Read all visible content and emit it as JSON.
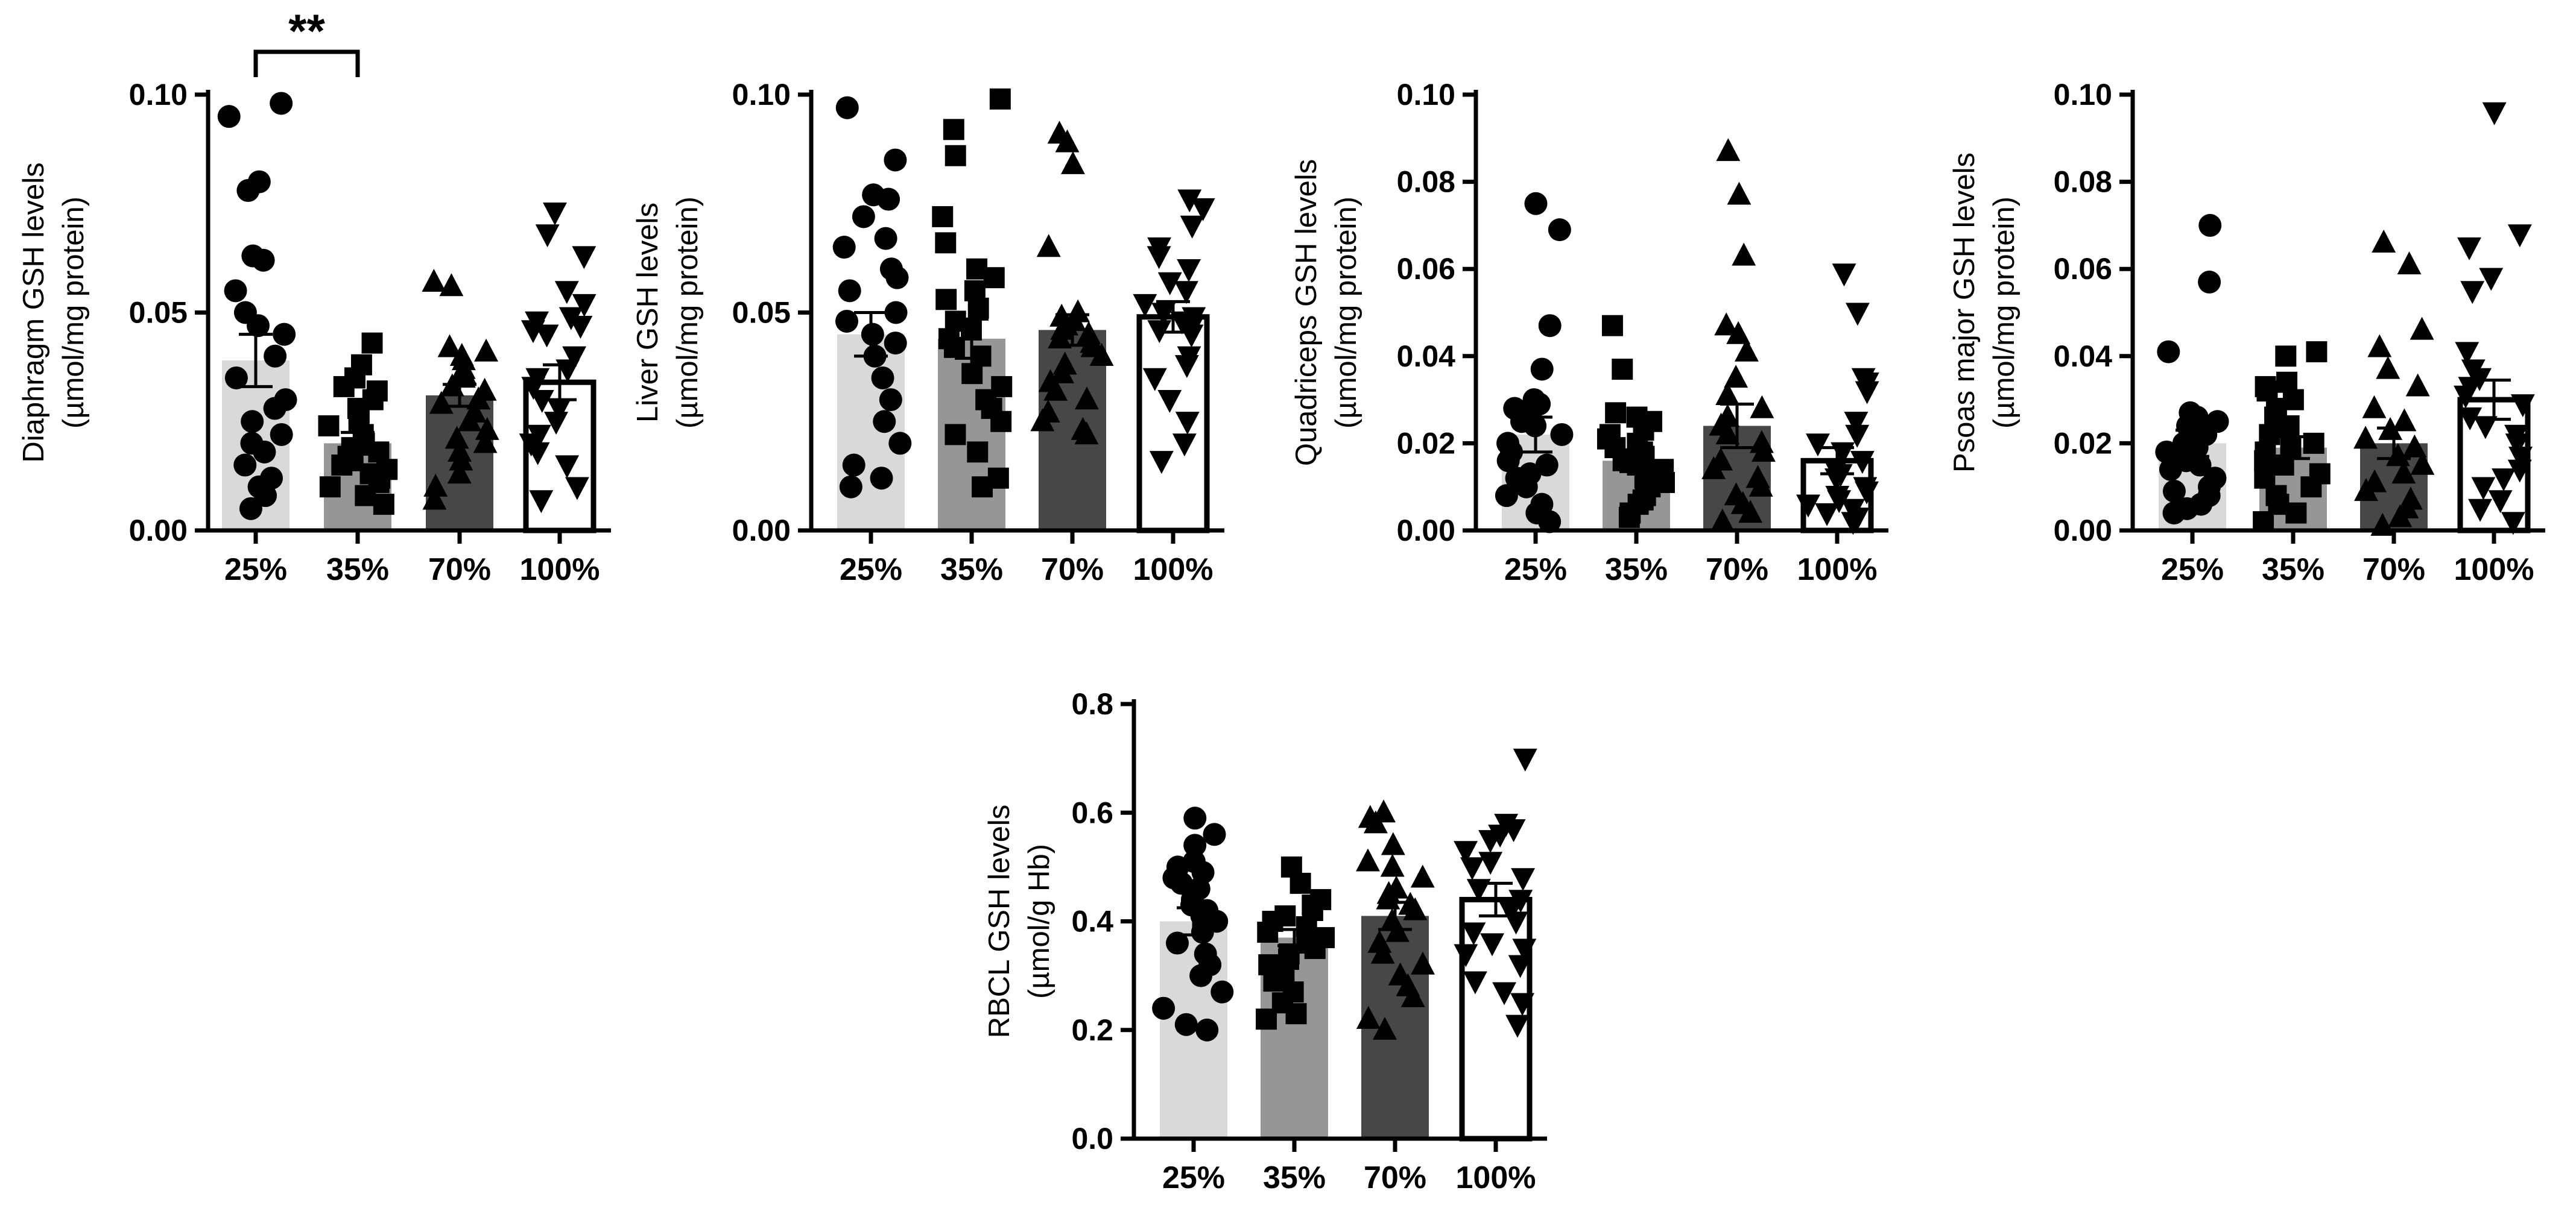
{
  "chart_data": [
    {
      "id": "diaphragm",
      "type": "bar",
      "ylabel": "Diaphragm GSH levels",
      "ylabel_unit": "(µmol/mg protein)",
      "categories": [
        "25%",
        "35%",
        "70%",
        "100%"
      ],
      "ylim": [
        0,
        0.1
      ],
      "yticks": [
        0.0,
        0.05,
        0.1
      ],
      "ytick_labels": [
        "0.00",
        "0.05",
        "0.10"
      ],
      "bar_colors": [
        "#d9d9d9",
        "#969696",
        "#474747",
        "#ffffff"
      ],
      "markers": [
        "circle",
        "square",
        "triangle-up",
        "triangle-down"
      ],
      "means": [
        0.039,
        0.02,
        0.031,
        0.034
      ],
      "sem": [
        0.006,
        0.0025,
        0.0025,
        0.004
      ],
      "points": [
        [
          0.098,
          0.095,
          0.08,
          0.078,
          0.063,
          0.062,
          0.055,
          0.05,
          0.047,
          0.045,
          0.04,
          0.035,
          0.03,
          0.028,
          0.025,
          0.022,
          0.02,
          0.018,
          0.015,
          0.012,
          0.01,
          0.008,
          0.005
        ],
        [
          0.043,
          0.038,
          0.035,
          0.033,
          0.032,
          0.03,
          0.028,
          0.027,
          0.025,
          0.024,
          0.022,
          0.02,
          0.019,
          0.018,
          0.017,
          0.016,
          0.015,
          0.014,
          0.013,
          0.012,
          0.011,
          0.01,
          0.008,
          0.006
        ],
        [
          0.057,
          0.056,
          0.042,
          0.041,
          0.04,
          0.039,
          0.037,
          0.036,
          0.035,
          0.033,
          0.032,
          0.03,
          0.029,
          0.027,
          0.025,
          0.023,
          0.021,
          0.02,
          0.018,
          0.016,
          0.013,
          0.01,
          0.007
        ],
        [
          0.073,
          0.068,
          0.063,
          0.055,
          0.052,
          0.049,
          0.048,
          0.047,
          0.046,
          0.045,
          0.04,
          0.037,
          0.035,
          0.033,
          0.03,
          0.028,
          0.025,
          0.022,
          0.02,
          0.018,
          0.015,
          0.01,
          0.007
        ]
      ],
      "significance": {
        "from": "25%",
        "to": "35%",
        "label": "**"
      }
    },
    {
      "id": "liver",
      "type": "bar",
      "ylabel": "Liver GSH levels",
      "ylabel_unit": "(µmol/mg protein)",
      "categories": [
        "25%",
        "35%",
        "70%",
        "100%"
      ],
      "ylim": [
        0,
        0.1
      ],
      "yticks": [
        0.0,
        0.05,
        0.1
      ],
      "ytick_labels": [
        "0.00",
        "0.05",
        "0.10"
      ],
      "bar_colors": [
        "#d9d9d9",
        "#969696",
        "#474747",
        "#ffffff"
      ],
      "markers": [
        "circle",
        "square",
        "triangle-up",
        "triangle-down"
      ],
      "means": [
        0.045,
        0.044,
        0.046,
        0.049
      ],
      "sem": [
        0.005,
        0.0045,
        0.0035,
        0.0035
      ],
      "points": [
        [
          0.097,
          0.085,
          0.077,
          0.076,
          0.072,
          0.067,
          0.065,
          0.06,
          0.058,
          0.055,
          0.05,
          0.048,
          0.045,
          0.043,
          0.04,
          0.035,
          0.03,
          0.025,
          0.02,
          0.015,
          0.012,
          0.01
        ],
        [
          0.099,
          0.092,
          0.086,
          0.072,
          0.066,
          0.06,
          0.058,
          0.055,
          0.053,
          0.051,
          0.048,
          0.046,
          0.044,
          0.042,
          0.04,
          0.036,
          0.033,
          0.03,
          0.028,
          0.025,
          0.022,
          0.018,
          0.012,
          0.01
        ],
        [
          0.091,
          0.089,
          0.084,
          0.065,
          0.05,
          0.049,
          0.048,
          0.047,
          0.046,
          0.045,
          0.044,
          0.043,
          0.042,
          0.04,
          0.038,
          0.036,
          0.034,
          0.032,
          0.03,
          0.027,
          0.025,
          0.023,
          0.022
        ],
        [
          0.076,
          0.074,
          0.07,
          0.065,
          0.063,
          0.06,
          0.057,
          0.055,
          0.052,
          0.05,
          0.049,
          0.048,
          0.047,
          0.046,
          0.045,
          0.04,
          0.038,
          0.035,
          0.03,
          0.025,
          0.02,
          0.016
        ]
      ]
    },
    {
      "id": "quadriceps",
      "type": "bar",
      "ylabel": "Quadriceps GSH levels",
      "ylabel_unit": "(µmol/mg protein)",
      "categories": [
        "25%",
        "35%",
        "70%",
        "100%"
      ],
      "ylim": [
        0,
        0.1
      ],
      "yticks": [
        0.0,
        0.02,
        0.04,
        0.06,
        0.08,
        0.1
      ],
      "ytick_labels": [
        "0.00",
        "0.02",
        "0.04",
        "0.06",
        "0.08",
        "0.10"
      ],
      "bar_colors": [
        "#d9d9d9",
        "#969696",
        "#474747",
        "#ffffff"
      ],
      "markers": [
        "circle",
        "square",
        "triangle-up",
        "triangle-down"
      ],
      "means": [
        0.022,
        0.016,
        0.024,
        0.016
      ],
      "sem": [
        0.004,
        0.0025,
        0.005,
        0.003
      ],
      "points": [
        [
          0.075,
          0.069,
          0.047,
          0.037,
          0.03,
          0.029,
          0.028,
          0.027,
          0.025,
          0.024,
          0.022,
          0.02,
          0.018,
          0.016,
          0.015,
          0.013,
          0.012,
          0.01,
          0.008,
          0.006,
          0.004,
          0.002
        ],
        [
          0.047,
          0.037,
          0.027,
          0.026,
          0.025,
          0.023,
          0.022,
          0.021,
          0.02,
          0.019,
          0.018,
          0.017,
          0.016,
          0.015,
          0.014,
          0.013,
          0.012,
          0.011,
          0.01,
          0.008,
          0.007,
          0.006,
          0.004,
          0.003
        ],
        [
          0.087,
          0.077,
          0.063,
          0.047,
          0.045,
          0.041,
          0.035,
          0.031,
          0.028,
          0.026,
          0.024,
          0.022,
          0.02,
          0.018,
          0.016,
          0.014,
          0.012,
          0.01,
          0.008,
          0.006,
          0.004,
          0.002
        ],
        [
          0.059,
          0.05,
          0.035,
          0.034,
          0.032,
          0.025,
          0.022,
          0.02,
          0.018,
          0.016,
          0.014,
          0.013,
          0.012,
          0.01,
          0.009,
          0.008,
          0.007,
          0.006,
          0.005,
          0.004,
          0.003,
          0.002
        ]
      ]
    },
    {
      "id": "psoas",
      "type": "bar",
      "ylabel": "Psoas major GSH levels",
      "ylabel_unit": "(µmol/mg protein)",
      "categories": [
        "25%",
        "35%",
        "70%",
        "100%"
      ],
      "ylim": [
        0,
        0.1
      ],
      "yticks": [
        0.0,
        0.02,
        0.04,
        0.06,
        0.08,
        0.1
      ],
      "ytick_labels": [
        "0.00",
        "0.02",
        "0.04",
        "0.06",
        "0.08",
        "0.10"
      ],
      "bar_colors": [
        "#d9d9d9",
        "#969696",
        "#474747",
        "#ffffff"
      ],
      "markers": [
        "circle",
        "square",
        "triangle-up",
        "triangle-down"
      ],
      "means": [
        0.02,
        0.019,
        0.02,
        0.03
      ],
      "sem": [
        0.003,
        0.0025,
        0.0035,
        0.0045
      ],
      "points": [
        [
          0.07,
          0.057,
          0.041,
          0.027,
          0.026,
          0.025,
          0.024,
          0.023,
          0.022,
          0.02,
          0.019,
          0.018,
          0.016,
          0.015,
          0.014,
          0.012,
          0.01,
          0.009,
          0.008,
          0.006,
          0.005,
          0.004
        ],
        [
          0.041,
          0.04,
          0.034,
          0.033,
          0.032,
          0.03,
          0.028,
          0.026,
          0.024,
          0.022,
          0.02,
          0.019,
          0.018,
          0.016,
          0.015,
          0.013,
          0.012,
          0.01,
          0.008,
          0.006,
          0.004,
          0.002
        ],
        [
          0.066,
          0.061,
          0.046,
          0.042,
          0.037,
          0.033,
          0.028,
          0.025,
          0.023,
          0.021,
          0.019,
          0.017,
          0.015,
          0.013,
          0.011,
          0.009,
          0.007,
          0.005,
          0.003,
          0.001
        ],
        [
          0.096,
          0.068,
          0.065,
          0.058,
          0.055,
          0.041,
          0.037,
          0.035,
          0.033,
          0.031,
          0.029,
          0.026,
          0.024,
          0.022,
          0.02,
          0.017,
          0.014,
          0.012,
          0.01,
          0.007,
          0.005,
          0.002
        ]
      ]
    },
    {
      "id": "rbcl",
      "type": "bar",
      "ylabel": "RBCL GSH levels",
      "ylabel_unit": "(µmol/g Hb)",
      "categories": [
        "25%",
        "35%",
        "70%",
        "100%"
      ],
      "ylim": [
        0,
        0.8
      ],
      "yticks": [
        0.0,
        0.2,
        0.4,
        0.6,
        0.8
      ],
      "ytick_labels": [
        "0.0",
        "0.2",
        "0.4",
        "0.6",
        "0.8"
      ],
      "bar_colors": [
        "#d9d9d9",
        "#969696",
        "#474747",
        "#ffffff"
      ],
      "markers": [
        "circle",
        "square",
        "triangle-up",
        "triangle-down"
      ],
      "means": [
        0.4,
        0.37,
        0.41,
        0.44
      ],
      "sem": [
        0.025,
        0.015,
        0.025,
        0.03
      ],
      "points": [
        [
          0.59,
          0.56,
          0.54,
          0.51,
          0.5,
          0.49,
          0.48,
          0.47,
          0.46,
          0.44,
          0.43,
          0.42,
          0.41,
          0.4,
          0.38,
          0.36,
          0.34,
          0.32,
          0.3,
          0.27,
          0.24,
          0.21,
          0.2
        ],
        [
          0.5,
          0.47,
          0.44,
          0.43,
          0.42,
          0.41,
          0.4,
          0.39,
          0.38,
          0.37,
          0.36,
          0.35,
          0.34,
          0.33,
          0.32,
          0.31,
          0.3,
          0.29,
          0.27,
          0.25,
          0.23,
          0.22
        ],
        [
          0.6,
          0.59,
          0.58,
          0.54,
          0.51,
          0.5,
          0.48,
          0.46,
          0.45,
          0.44,
          0.43,
          0.42,
          0.4,
          0.38,
          0.36,
          0.34,
          0.32,
          0.3,
          0.28,
          0.26,
          0.22,
          0.2
        ],
        [
          0.7,
          0.58,
          0.57,
          0.56,
          0.55,
          0.53,
          0.51,
          0.5,
          0.48,
          0.46,
          0.44,
          0.42,
          0.4,
          0.38,
          0.36,
          0.35,
          0.34,
          0.32,
          0.29,
          0.27,
          0.25,
          0.21
        ]
      ]
    }
  ]
}
